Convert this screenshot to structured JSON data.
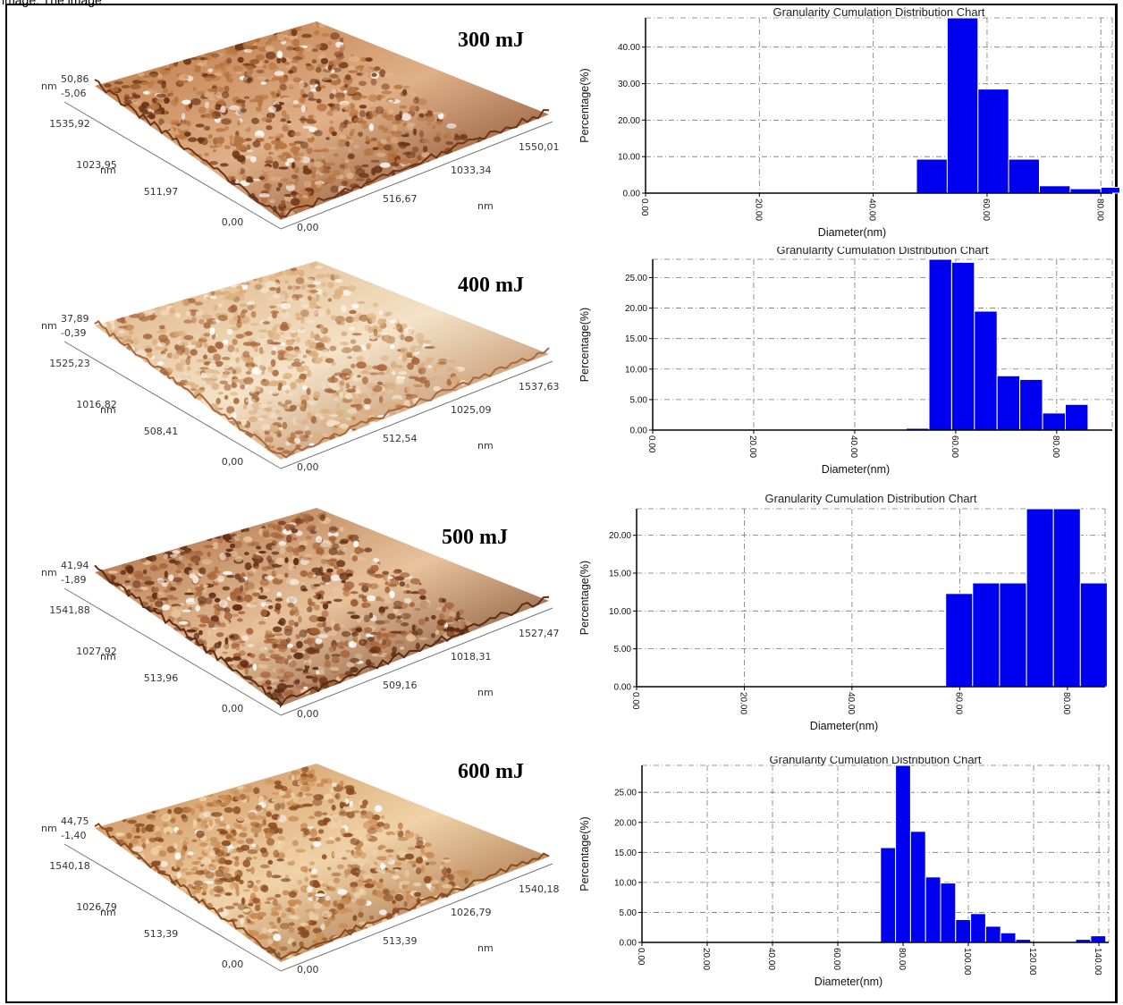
{
  "header": {
    "text": "image. The image"
  },
  "afm_panels": [
    {
      "energy": "300 mJ",
      "z_unit": "nm",
      "z_max": "50,86",
      "z_min": "-5,06",
      "y_ticks": [
        "1535,92",
        "1023,95",
        "511,97",
        "0,00"
      ],
      "y_unit": "nm",
      "x_ticks": [
        "0,00",
        "516,67",
        "1033,34",
        "1550,01"
      ],
      "x_unit": "nm",
      "colors": {
        "dark": "#6e3417",
        "mid": "#b8733f",
        "light": "#e0b088"
      }
    },
    {
      "energy": "400 mJ",
      "z_unit": "nm",
      "z_max": "37,89",
      "z_min": "-0,39",
      "y_ticks": [
        "1525,23",
        "1016,82",
        "508,41",
        "0,00"
      ],
      "y_unit": "nm",
      "x_ticks": [
        "0,00",
        "512,54",
        "1025,09",
        "1537,63"
      ],
      "x_unit": "nm",
      "colors": {
        "dark": "#a9693d",
        "mid": "#dcae7d",
        "light": "#f4e2c8"
      }
    },
    {
      "energy": "500 mJ",
      "z_unit": "nm",
      "z_max": "41,94",
      "z_min": "-1,89",
      "y_ticks": [
        "1541,88",
        "1027,92",
        "513,96",
        "0,00"
      ],
      "y_unit": "nm",
      "x_ticks": [
        "0,00",
        "509,16",
        "1018,31",
        "1527,47"
      ],
      "x_unit": "nm",
      "colors": {
        "dark": "#5e2a12",
        "mid": "#a8653a",
        "light": "#e8c39c"
      }
    },
    {
      "energy": "600 mJ",
      "z_unit": "nm",
      "z_max": "44,75",
      "z_min": "-1,40",
      "y_ticks": [
        "1540,18",
        "1026,79",
        "513,39",
        "0,00"
      ],
      "y_unit": "nm",
      "x_ticks": [
        "0,00",
        "513,39",
        "1026,79",
        "1540,18"
      ],
      "x_unit": "nm",
      "colors": {
        "dark": "#8a4a20",
        "mid": "#c98a52",
        "light": "#f0d2a8"
      }
    }
  ],
  "chart_data": [
    {
      "type": "bar",
      "title": "Granularity Cumulation Distribution  Chart",
      "xlabel": "Diameter(nm)",
      "ylabel": "Percentage(%)",
      "xlim": [
        0,
        82
      ],
      "ylim": [
        0,
        48
      ],
      "x_ticks": [
        0,
        20,
        40,
        60,
        80
      ],
      "x_tick_labels": [
        "0.00",
        "20.00",
        "40.00",
        "60.00",
        "80.00"
      ],
      "y_ticks": [
        0,
        10,
        20,
        30,
        40
      ],
      "y_tick_labels": [
        "0.00",
        "10.00",
        "20.00",
        "30.00",
        "40.00"
      ],
      "bin_width": 5.4,
      "bins_start": [
        47.6,
        53.0,
        58.4,
        63.8,
        69.2,
        74.6,
        80.0
      ],
      "values": [
        9.3,
        48.0,
        28.5,
        9.3,
        2.0,
        1.2,
        1.6
      ],
      "grid": true
    },
    {
      "type": "bar",
      "title": "Granularity Cumulation Distribution  Chart",
      "xlabel": "Diameter(nm)",
      "ylabel": "Percentage(%)",
      "xlim": [
        0,
        91
      ],
      "ylim": [
        0,
        28
      ],
      "x_ticks": [
        0,
        20,
        40,
        60,
        80
      ],
      "x_tick_labels": [
        "0.00",
        "20.00",
        "40.00",
        "60.00",
        "80.00"
      ],
      "y_ticks": [
        0,
        5,
        10,
        15,
        20,
        25
      ],
      "y_tick_labels": [
        "0.00",
        "5.00",
        "10.00",
        "15.00",
        "20.00",
        "25.00"
      ],
      "bin_width": 4.5,
      "bins_start": [
        50.2,
        54.7,
        59.2,
        63.7,
        68.2,
        72.7,
        77.2,
        81.7,
        86.2
      ],
      "values": [
        0.3,
        28.0,
        27.5,
        19.5,
        8.9,
        8.3,
        2.8,
        4.2,
        0.1
      ],
      "grid": true
    },
    {
      "type": "bar",
      "title": "Granularity Cumulation Distribution  Chart",
      "xlabel": "Diameter(nm)",
      "ylabel": "Percentage(%)",
      "xlim": [
        0,
        87
      ],
      "ylim": [
        0,
        23.5
      ],
      "x_ticks": [
        0,
        20,
        40,
        60,
        80
      ],
      "x_tick_labels": [
        "0.00",
        "20.00",
        "40.00",
        "60.00",
        "80.00"
      ],
      "y_ticks": [
        0,
        5,
        10,
        15,
        20
      ],
      "y_tick_labels": [
        "0.00",
        "5.00",
        "10.00",
        "15.00",
        "20.00"
      ],
      "bin_width": 5.0,
      "bins_start": [
        57.4,
        62.4,
        67.4,
        72.4,
        77.4,
        82.4
      ],
      "values": [
        12.3,
        13.7,
        13.7,
        23.5,
        23.5,
        13.7
      ],
      "grid": true
    },
    {
      "type": "bar",
      "title": "Granularity Cumulation Distribution  Chart",
      "xlabel": "Diameter(nm)",
      "ylabel": "Percentage(%)",
      "xlim": [
        0,
        143
      ],
      "ylim": [
        0,
        29.5
      ],
      "x_ticks": [
        0,
        20,
        40,
        60,
        80,
        100,
        120,
        140
      ],
      "x_tick_labels": [
        "0.00",
        "20.00",
        "40.00",
        "60.00",
        "80.00",
        "100.00",
        "120.00",
        "140.00"
      ],
      "y_ticks": [
        0,
        5,
        10,
        15,
        20,
        25
      ],
      "y_tick_labels": [
        "0.00",
        "5.00",
        "10.00",
        "15.00",
        "20.00",
        "25.00"
      ],
      "bin_width": 4.6,
      "bins_start": [
        73.1,
        77.7,
        82.3,
        86.9,
        91.5,
        96.1,
        100.7,
        105.3,
        109.9,
        114.5,
        119.1,
        123.7,
        128.3,
        132.9,
        137.5
      ],
      "values": [
        15.8,
        29.5,
        18.5,
        10.9,
        9.9,
        3.8,
        4.8,
        2.7,
        1.6,
        0.5,
        0,
        0,
        0,
        0.5,
        1.1
      ],
      "grid": true
    }
  ]
}
